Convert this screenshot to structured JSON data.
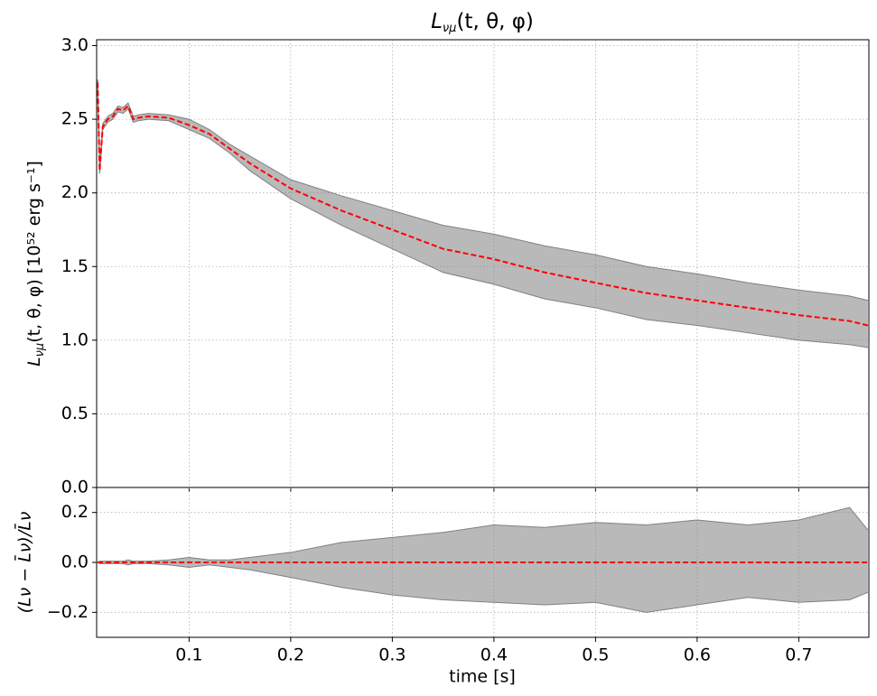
{
  "chart_data": [
    {
      "type": "line",
      "title": [
        "L",
        "νμ",
        "(t, θ, φ)"
      ],
      "y_label": [
        "L",
        "νμ",
        "(t, θ, φ) [10⁵² erg s⁻¹]"
      ],
      "grid": true,
      "x": [
        0.01,
        0.012,
        0.015,
        0.02,
        0.025,
        0.03,
        0.035,
        0.04,
        0.045,
        0.05,
        0.06,
        0.08,
        0.1,
        0.12,
        0.14,
        0.16,
        0.2,
        0.25,
        0.3,
        0.35,
        0.4,
        0.45,
        0.5,
        0.55,
        0.6,
        0.65,
        0.7,
        0.75,
        0.768
      ],
      "xlim": [
        0.009,
        0.769
      ],
      "xticks": [
        0.1,
        0.2,
        0.3,
        0.4,
        0.5,
        0.6,
        0.7
      ],
      "ylim": [
        0,
        3.04
      ],
      "yticks": [
        {
          "value": 0,
          "label": "0.0"
        },
        0.5,
        {
          "value": 1,
          "label": "1.0"
        },
        1.5,
        {
          "value": 2,
          "label": "2.0"
        },
        2.5,
        {
          "value": 3,
          "label": "3.0"
        }
      ],
      "band_color": "#808080",
      "series": [
        {
          "color": "#808080",
          "values": [
            2.77,
            2.17,
            2.47,
            2.52,
            2.54,
            2.59,
            2.58,
            2.61,
            2.52,
            2.53,
            2.54,
            2.53,
            2.5,
            2.43,
            2.33,
            2.25,
            2.09,
            1.98,
            1.88,
            1.78,
            1.72,
            1.64,
            1.58,
            1.5,
            1.45,
            1.39,
            1.34,
            1.3,
            1.27
          ]
        },
        {
          "color": "#808080",
          "values": [
            2.73,
            2.13,
            2.43,
            2.48,
            2.5,
            2.55,
            2.54,
            2.57,
            2.48,
            2.49,
            2.5,
            2.49,
            2.43,
            2.37,
            2.27,
            2.15,
            1.96,
            1.78,
            1.62,
            1.46,
            1.38,
            1.28,
            1.22,
            1.14,
            1.1,
            1.05,
            1.0,
            0.97,
            0.95
          ]
        },
        {
          "color": "#ff0000",
          "dashed": true,
          "values": [
            2.75,
            2.15,
            2.45,
            2.5,
            2.52,
            2.57,
            2.56,
            2.59,
            2.5,
            2.51,
            2.52,
            2.51,
            2.46,
            2.4,
            2.3,
            2.2,
            2.03,
            1.88,
            1.75,
            1.62,
            1.55,
            1.46,
            1.39,
            1.32,
            1.27,
            1.22,
            1.17,
            1.13,
            1.1
          ]
        }
      ]
    },
    {
      "type": "line",
      "y_label": [
        "(Lν − L̄ν)/L̄ν"
      ],
      "x_label": "time [s]",
      "grid": true,
      "x": [
        0.01,
        0.012,
        0.015,
        0.02,
        0.025,
        0.03,
        0.035,
        0.04,
        0.045,
        0.05,
        0.06,
        0.08,
        0.1,
        0.12,
        0.14,
        0.16,
        0.2,
        0.25,
        0.3,
        0.35,
        0.4,
        0.45,
        0.5,
        0.55,
        0.6,
        0.65,
        0.7,
        0.75,
        0.768
      ],
      "xlim": [
        0.009,
        0.769
      ],
      "xticks": [
        0.1,
        0.2,
        0.3,
        0.4,
        0.5,
        0.6,
        0.7
      ],
      "ylim": [
        -0.3,
        0.3
      ],
      "yticks": [
        {
          "value": -0.2,
          "label": "−0.2"
        },
        {
          "value": 0,
          "label": "0.0"
        },
        0.2
      ],
      "band_color": "#808080",
      "series": [
        {
          "color": "#808080",
          "values": [
            0,
            0.005,
            0.005,
            0.005,
            0.005,
            0.005,
            0.005,
            0.01,
            0.005,
            0.005,
            0.005,
            0.01,
            0.02,
            0.01,
            0.01,
            0.02,
            0.04,
            0.08,
            0.1,
            0.12,
            0.15,
            0.14,
            0.16,
            0.15,
            0.17,
            0.15,
            0.17,
            0.22,
            0.13
          ]
        },
        {
          "color": "#808080",
          "values": [
            0,
            -0.005,
            -0.005,
            -0.005,
            -0.005,
            -0.005,
            -0.005,
            -0.01,
            -0.005,
            -0.005,
            -0.005,
            -0.01,
            -0.02,
            -0.01,
            -0.02,
            -0.03,
            -0.06,
            -0.1,
            -0.13,
            -0.15,
            -0.16,
            -0.17,
            -0.16,
            -0.2,
            -0.17,
            -0.14,
            -0.16,
            -0.15,
            -0.12
          ]
        },
        {
          "color": "#ff0000",
          "dashed": true,
          "values": [
            0,
            0,
            0,
            0,
            0,
            0,
            0,
            0,
            0,
            0,
            0,
            0,
            0,
            0,
            0,
            0,
            0,
            0,
            0,
            0,
            0,
            0,
            0,
            0,
            0,
            0,
            0,
            0,
            0
          ]
        }
      ]
    }
  ]
}
